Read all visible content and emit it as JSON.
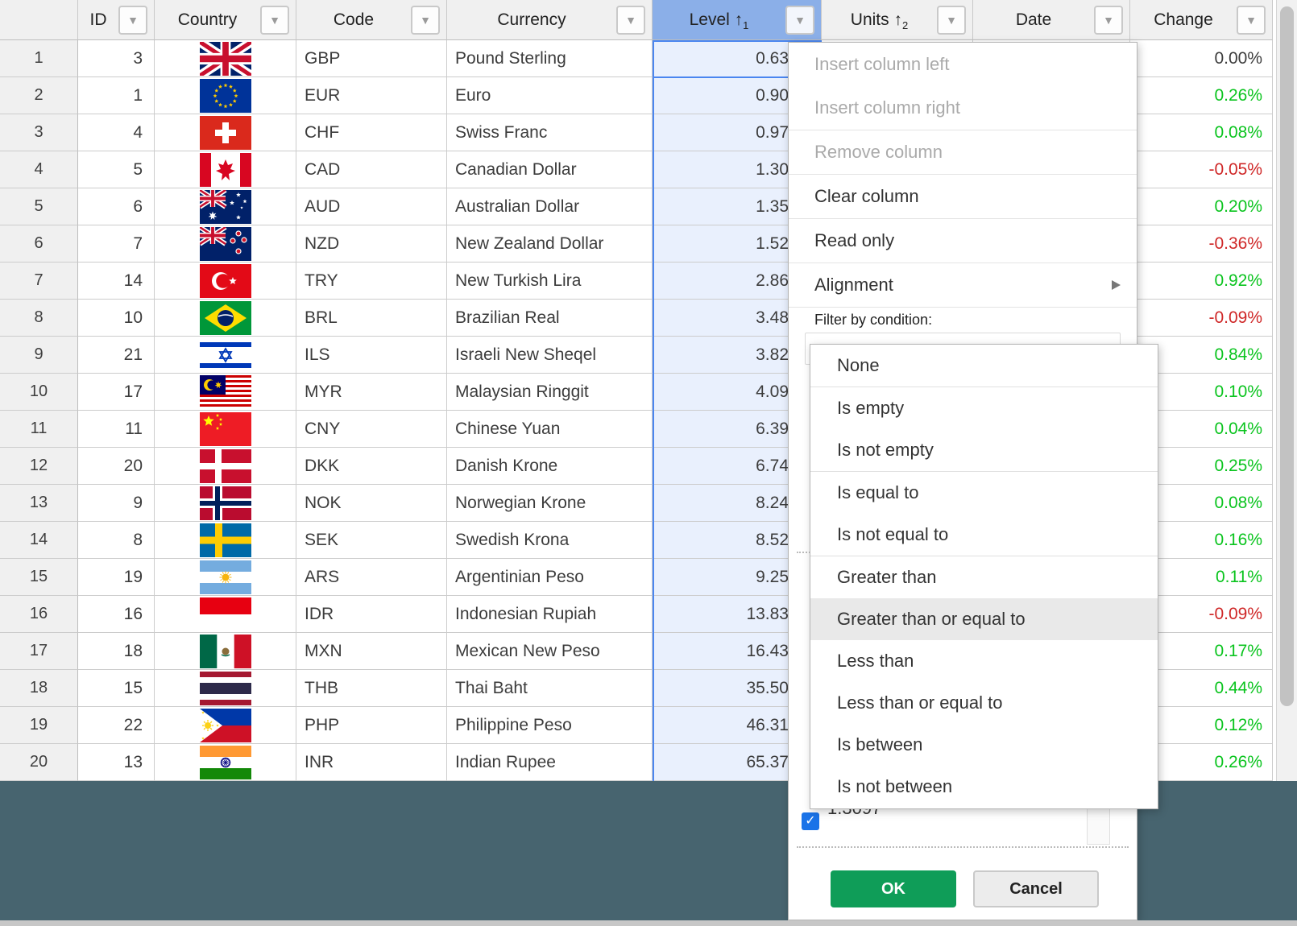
{
  "table": {
    "columns": [
      {
        "key": "rowhead",
        "label": ""
      },
      {
        "key": "id",
        "label": "ID",
        "filter_button": true
      },
      {
        "key": "country",
        "label": "Country",
        "filter_button": true
      },
      {
        "key": "code",
        "label": "Code",
        "filter_button": true
      },
      {
        "key": "currency",
        "label": "Currency",
        "filter_button": true
      },
      {
        "key": "level",
        "label": "Level",
        "filter_button": true,
        "sort_arrow": "↑",
        "sort_order": "1",
        "selected": true
      },
      {
        "key": "units",
        "label": "Units",
        "filter_button": true,
        "sort_arrow": "↑",
        "sort_order": "2"
      },
      {
        "key": "date",
        "label": "Date",
        "filter_button": true
      },
      {
        "key": "change",
        "label": "Change",
        "filter_button": true
      }
    ],
    "rows": [
      {
        "n": "1",
        "id": "3",
        "flag": "GBP",
        "code": "GBP",
        "currency": "Pound Sterling",
        "level": "0.63",
        "units": "",
        "date": "",
        "change": "0.00%",
        "trend": "flat"
      },
      {
        "n": "2",
        "id": "1",
        "flag": "EUR",
        "code": "EUR",
        "currency": "Euro",
        "level": "0.90",
        "units": "",
        "date": "",
        "change": "0.26%",
        "trend": "up"
      },
      {
        "n": "3",
        "id": "4",
        "flag": "CHF",
        "code": "CHF",
        "currency": "Swiss Franc",
        "level": "0.97",
        "units": "",
        "date": "",
        "change": "0.08%",
        "trend": "up"
      },
      {
        "n": "4",
        "id": "5",
        "flag": "CAD",
        "code": "CAD",
        "currency": "Canadian Dollar",
        "level": "1.30",
        "units": "",
        "date": "",
        "change": "-0.05%",
        "trend": "down"
      },
      {
        "n": "5",
        "id": "6",
        "flag": "AUD",
        "code": "AUD",
        "currency": "Australian Dollar",
        "level": "1.35",
        "units": "",
        "date": "",
        "change": "0.20%",
        "trend": "up"
      },
      {
        "n": "6",
        "id": "7",
        "flag": "NZD",
        "code": "NZD",
        "currency": "New Zealand Dollar",
        "level": "1.52",
        "units": "",
        "date": "",
        "change": "-0.36%",
        "trend": "down"
      },
      {
        "n": "7",
        "id": "14",
        "flag": "TRY",
        "code": "TRY",
        "currency": "New Turkish Lira",
        "level": "2.86",
        "units": "",
        "date": "",
        "change": "0.92%",
        "trend": "up"
      },
      {
        "n": "8",
        "id": "10",
        "flag": "BRL",
        "code": "BRL",
        "currency": "Brazilian Real",
        "level": "3.48",
        "units": "",
        "date": "",
        "change": "-0.09%",
        "trend": "down"
      },
      {
        "n": "9",
        "id": "21",
        "flag": "ILS",
        "code": "ILS",
        "currency": "Israeli New Sheqel",
        "level": "3.82",
        "units": "",
        "date": "",
        "change": "0.84%",
        "trend": "up"
      },
      {
        "n": "10",
        "id": "17",
        "flag": "MYR",
        "code": "MYR",
        "currency": "Malaysian Ringgit",
        "level": "4.09",
        "units": "",
        "date": "",
        "change": "0.10%",
        "trend": "up"
      },
      {
        "n": "11",
        "id": "11",
        "flag": "CNY",
        "code": "CNY",
        "currency": "Chinese Yuan",
        "level": "6.39",
        "units": "",
        "date": "",
        "change": "0.04%",
        "trend": "up"
      },
      {
        "n": "12",
        "id": "20",
        "flag": "DKK",
        "code": "DKK",
        "currency": "Danish Krone",
        "level": "6.74",
        "units": "",
        "date": "",
        "change": "0.25%",
        "trend": "up"
      },
      {
        "n": "13",
        "id": "9",
        "flag": "NOK",
        "code": "NOK",
        "currency": "Norwegian Krone",
        "level": "8.24",
        "units": "",
        "date": "",
        "change": "0.08%",
        "trend": "up"
      },
      {
        "n": "14",
        "id": "8",
        "flag": "SEK",
        "code": "SEK",
        "currency": "Swedish Krona",
        "level": "8.52",
        "units": "",
        "date": "",
        "change": "0.16%",
        "trend": "up"
      },
      {
        "n": "15",
        "id": "19",
        "flag": "ARS",
        "code": "ARS",
        "currency": "Argentinian Peso",
        "level": "9.25",
        "units": "",
        "date": "",
        "change": "0.11%",
        "trend": "up"
      },
      {
        "n": "16",
        "id": "16",
        "flag": "IDR",
        "code": "IDR",
        "currency": "Indonesian Rupiah",
        "level": "13.83",
        "units": "",
        "date": "",
        "change": "-0.09%",
        "trend": "down"
      },
      {
        "n": "17",
        "id": "18",
        "flag": "MXN",
        "code": "MXN",
        "currency": "Mexican New Peso",
        "level": "16.43",
        "units": "",
        "date": "",
        "change": "0.17%",
        "trend": "up"
      },
      {
        "n": "18",
        "id": "15",
        "flag": "THB",
        "code": "THB",
        "currency": "Thai Baht",
        "level": "35.50",
        "units": "",
        "date": "",
        "change": "0.44%",
        "trend": "up"
      },
      {
        "n": "19",
        "id": "22",
        "flag": "PHP",
        "code": "PHP",
        "currency": "Philippine Peso",
        "level": "46.31",
        "units": "",
        "date": "",
        "change": "0.12%",
        "trend": "up"
      },
      {
        "n": "20",
        "id": "13",
        "flag": "INR",
        "code": "INR",
        "currency": "Indian Rupee",
        "level": "65.37",
        "units": "",
        "date": "",
        "change": "0.26%",
        "trend": "up"
      }
    ]
  },
  "context_menu": {
    "items": [
      {
        "label": "Insert column left",
        "disabled": true,
        "sep_after": false
      },
      {
        "label": "Insert column right",
        "disabled": true,
        "sep_after": true
      },
      {
        "label": "Remove column",
        "disabled": true,
        "sep_after": true
      },
      {
        "label": "Clear column",
        "disabled": false,
        "sep_after": true
      },
      {
        "label": "Read only",
        "disabled": false,
        "sep_after": true
      },
      {
        "label": "Alignment",
        "disabled": false,
        "submenu": true,
        "sep_after": true
      }
    ],
    "filter_condition_label": "Filter by condition:",
    "value_item": {
      "checked": true,
      "label": "1.3097"
    },
    "ok_label": "OK",
    "cancel_label": "Cancel"
  },
  "condition_dropdown": {
    "items": [
      {
        "label": "None"
      },
      {
        "label": "Is empty"
      },
      {
        "label": "Is not empty"
      },
      {
        "label": "Is equal to"
      },
      {
        "label": "Is not equal to"
      },
      {
        "label": "Greater than"
      },
      {
        "label": "Greater than or equal to",
        "highlighted": true
      },
      {
        "label": "Less than"
      },
      {
        "label": "Less than or equal to"
      },
      {
        "label": "Is between"
      },
      {
        "label": "Is not between"
      }
    ],
    "group_breaks_after": [
      0,
      2,
      4
    ]
  },
  "colors": {
    "positive_change": "#0ac41e",
    "negative_change": "#cf2727",
    "neutral_change": "#3c3c3c",
    "selected_header": "#8bafe8",
    "selection_border": "#4a86f0",
    "selection_fill": "#e9f0fd",
    "ok_button": "#0f9d58",
    "background_panel": "#47646f",
    "checkbox": "#1a73e8"
  }
}
